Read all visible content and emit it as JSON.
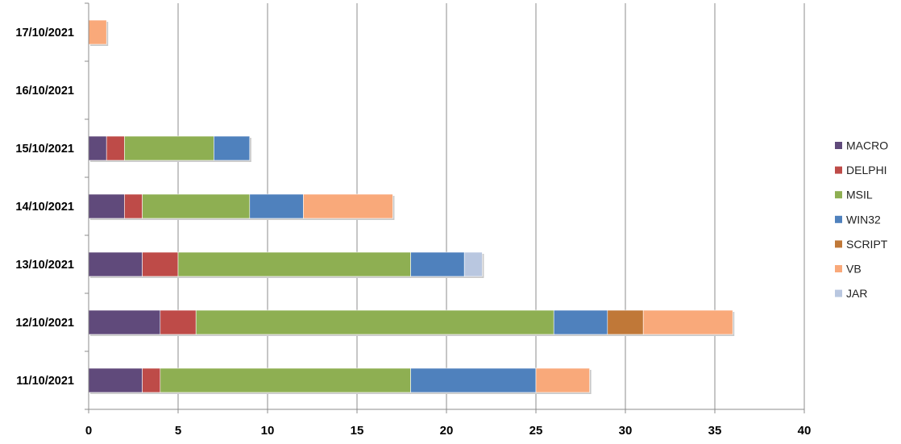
{
  "chart_data": {
    "type": "bar",
    "orientation": "horizontal",
    "stacked": true,
    "categories": [
      "11/10/2021",
      "12/10/2021",
      "13/10/2021",
      "14/10/2021",
      "15/10/2021",
      "16/10/2021",
      "17/10/2021"
    ],
    "series": [
      {
        "name": "MACRO",
        "color": "#604A7B",
        "values": [
          3,
          4,
          3,
          2,
          1,
          0,
          0
        ]
      },
      {
        "name": "DELPHI",
        "color": "#BE4B48",
        "values": [
          1,
          2,
          2,
          1,
          1,
          0,
          0
        ]
      },
      {
        "name": "MSIL",
        "color": "#8EAF52",
        "values": [
          14,
          20,
          13,
          6,
          5,
          0,
          0
        ]
      },
      {
        "name": "WIN32",
        "color": "#4F81BD",
        "values": [
          7,
          3,
          3,
          3,
          2,
          0,
          0
        ]
      },
      {
        "name": "SCRIPT",
        "color": "#C07838",
        "values": [
          0,
          2,
          0,
          0,
          0,
          0,
          0
        ]
      },
      {
        "name": "VB",
        "color": "#F9A97A",
        "values": [
          3,
          5,
          0,
          5,
          0,
          0,
          1
        ]
      },
      {
        "name": "JAR",
        "color": "#B9C7E0",
        "values": [
          0,
          0,
          1,
          0,
          0,
          0,
          0
        ]
      }
    ],
    "xlim": [
      0,
      40
    ],
    "xticks": [
      0,
      5,
      10,
      15,
      20,
      25,
      30,
      35,
      40
    ],
    "grid": "vertical",
    "legend_position": "right"
  }
}
